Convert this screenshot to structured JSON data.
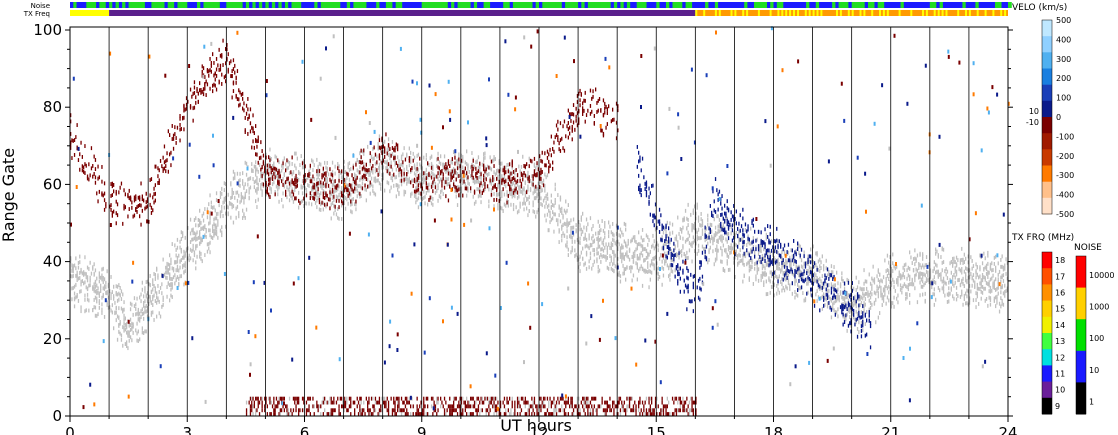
{
  "chart_data": {
    "type": "heatmap",
    "title": "",
    "xlabel": "UT hours",
    "ylabel": "Range Gate",
    "xlim": [
      0,
      24
    ],
    "ylim": [
      0,
      100
    ],
    "x_ticks": [
      "0",
      "3",
      "6",
      "9",
      "12",
      "15",
      "18",
      "21",
      "24"
    ],
    "y_ticks": [
      "0",
      "20",
      "40",
      "60",
      "80",
      "100"
    ],
    "grid": false,
    "scan_boundaries_hours": [
      1.0,
      2.0,
      3.0,
      4.0,
      5.0,
      6.0,
      7.0,
      8.0,
      9.0,
      10.0,
      11.0,
      12.0,
      13.0,
      14.0,
      15.0,
      16.0,
      17.0,
      18.0,
      19.0,
      20.0,
      21.0,
      22.0,
      23.0
    ],
    "header_bars": {
      "noise_label": "Noise",
      "freq_label": "TX Freq",
      "noise_segments": [
        {
          "start": 0,
          "end": 16.0,
          "color": "#22dd22",
          "pattern": "mixed"
        },
        {
          "start": 16.0,
          "end": 24,
          "color": "#22dd22",
          "pattern": "mixed"
        }
      ],
      "freq_segments": [
        {
          "start": 0,
          "end": 1.0,
          "color": "#ffff00"
        },
        {
          "start": 1.0,
          "end": 16.0,
          "color": "#5a1f8c"
        },
        {
          "start": 16.0,
          "end": 24,
          "color": "#ff9a00"
        }
      ]
    },
    "velocity_colorbar": {
      "title": "VELO (km/s)",
      "labels": [
        "500",
        "400",
        "300",
        "200",
        "100",
        "0",
        "-100",
        "-200",
        "-300",
        "-400",
        "-500"
      ],
      "side_labels": [
        "10",
        "-10"
      ],
      "colors": [
        "#bfe8ff",
        "#8fd0ff",
        "#4fb0f0",
        "#1a7fe0",
        "#1a3fb8",
        "#0a1a8a",
        "#7a0000",
        "#a01a00",
        "#c83a00",
        "#ff7a00",
        "#ffc08a",
        "#ffe0c8"
      ]
    },
    "freq_colorbar": {
      "title": "TX FRQ (MHz)",
      "labels": [
        "18",
        "17",
        "16",
        "15",
        "14",
        "13",
        "12",
        "11",
        "10",
        "9"
      ],
      "colors": [
        "#ff0000",
        "#ff5000",
        "#ff9000",
        "#ffd000",
        "#f0f000",
        "#40ff40",
        "#00e0e0",
        "#1a1aff",
        "#6a1f9a",
        "#000000"
      ]
    },
    "noise_colorbar": {
      "title": "NOISE",
      "labels": [
        "10000",
        "1000",
        "100",
        "10",
        "1"
      ],
      "colors": [
        "#ff0000",
        "#ffd000",
        "#00e000",
        "#1a1aff",
        "#000000"
      ]
    },
    "series": [
      {
        "name": "ground scatter",
        "color": "#c0c0c0",
        "x": [
          0.0,
          1.0,
          1.5,
          2.0,
          2.5,
          3.0,
          3.5,
          4.0,
          5.0,
          6.0,
          7.0,
          8.0,
          9.0,
          10.0,
          11.0,
          12.0,
          13.0,
          14.0,
          15.0,
          16.0,
          17.0,
          18.0,
          19.0,
          20.0,
          21.0,
          22.0,
          23.0,
          24.0
        ],
        "y": [
          36,
          30,
          22,
          30,
          35,
          42,
          48,
          55,
          62,
          60,
          58,
          65,
          60,
          62,
          60,
          58,
          45,
          42,
          40,
          48,
          42,
          38,
          36,
          28,
          34,
          36,
          35,
          34
        ]
      },
      {
        "name": "negative velocity",
        "color": "#7a0000",
        "x": [
          0.0,
          1.0,
          2.0,
          3.0,
          4.0,
          5.0,
          6.0,
          7.0,
          8.0,
          9.0,
          10.0,
          11.0,
          12.0,
          13.0,
          14.0
        ],
        "y": [
          72,
          55,
          55,
          80,
          92,
          62,
          60,
          58,
          68,
          60,
          62,
          60,
          62,
          80,
          76
        ]
      },
      {
        "name": "positive velocity",
        "color": "#0a1a8a",
        "x": [
          14.5,
          15.0,
          15.5,
          16.0,
          16.5,
          17.0,
          17.5,
          18.0,
          19.0,
          20.0,
          20.5
        ],
        "y": [
          65,
          50,
          38,
          30,
          55,
          48,
          45,
          42,
          35,
          27,
          23
        ]
      }
    ]
  }
}
